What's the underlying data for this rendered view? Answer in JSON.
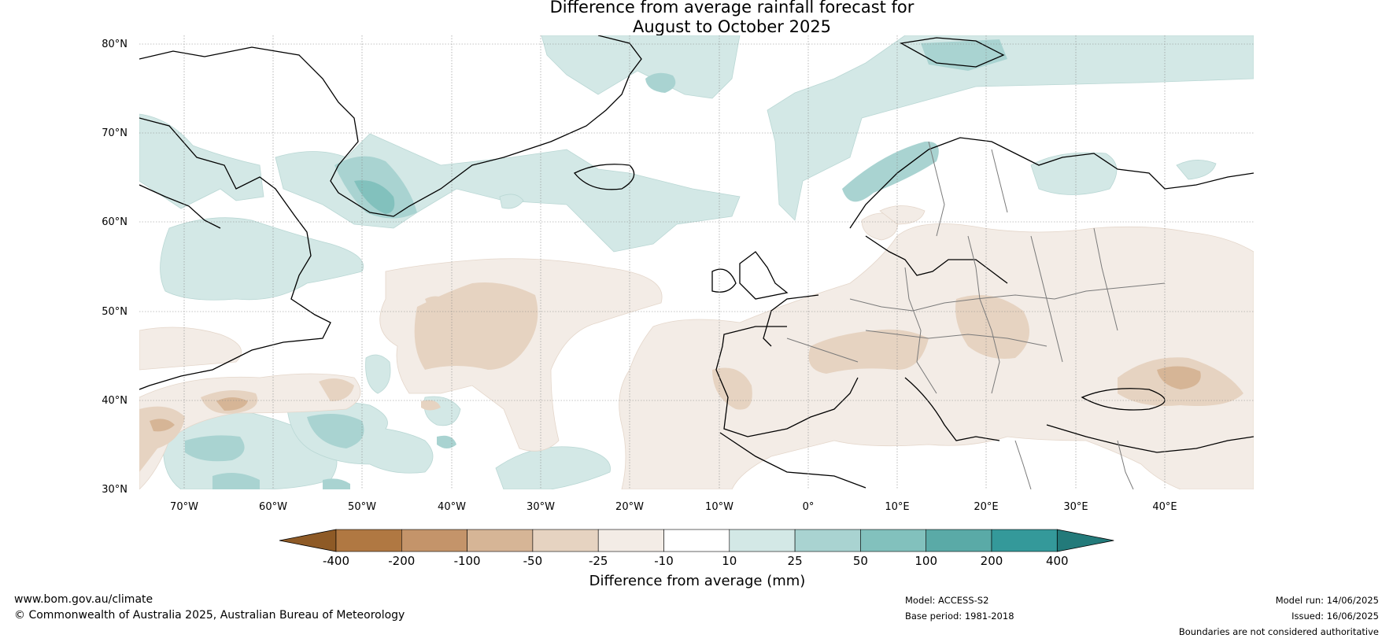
{
  "title": {
    "line1": "Difference from average rainfall forecast for",
    "line2": "August to October 2025"
  },
  "map": {
    "lat_range": [
      30,
      80
    ],
    "lon_range": [
      -75,
      50
    ],
    "lat_labels": [
      "30°N",
      "40°N",
      "50°N",
      "60°N",
      "70°N",
      "80°N"
    ],
    "lat_values": [
      30,
      40,
      50,
      60,
      70,
      80
    ],
    "lon_labels": [
      "70°W",
      "60°W",
      "50°W",
      "40°W",
      "30°W",
      "20°W",
      "10°W",
      "0°",
      "10°E",
      "20°E",
      "30°E",
      "40°E"
    ],
    "lon_values": [
      -70,
      -60,
      -50,
      -40,
      -30,
      -20,
      -10,
      0,
      10,
      20,
      30,
      40
    ],
    "gridlines": true,
    "dry_color_anomaly": "#f3ece6",
    "wet_color_anomaly": "#d3e8e6"
  },
  "colorbar": {
    "label": "Difference from average (mm)",
    "ticks": [
      "-400",
      "-200",
      "-100",
      "-50",
      "-25",
      "-10",
      "10",
      "25",
      "50",
      "100",
      "200",
      "400"
    ],
    "colors": [
      "#8e5a26",
      "#b07842",
      "#c4946a",
      "#d6b596",
      "#e6d3c1",
      "#f3ece6",
      "#ffffff",
      "#d3e8e6",
      "#a9d3d1",
      "#82c1bd",
      "#5aaaa7",
      "#34999a",
      "#237a7a"
    ]
  },
  "footer": {
    "website": "www.bom.gov.au/climate",
    "copyright": "© Commonwealth of Australia 2025, Australian Bureau of Meteorology",
    "model": "Model: ACCESS-S2",
    "base_period": "Base period: 1981-2018",
    "model_run": "Model run: 14/06/2025",
    "issued": "Issued: 16/06/2025",
    "disclaimer": "Boundaries are not considered authoritative"
  }
}
